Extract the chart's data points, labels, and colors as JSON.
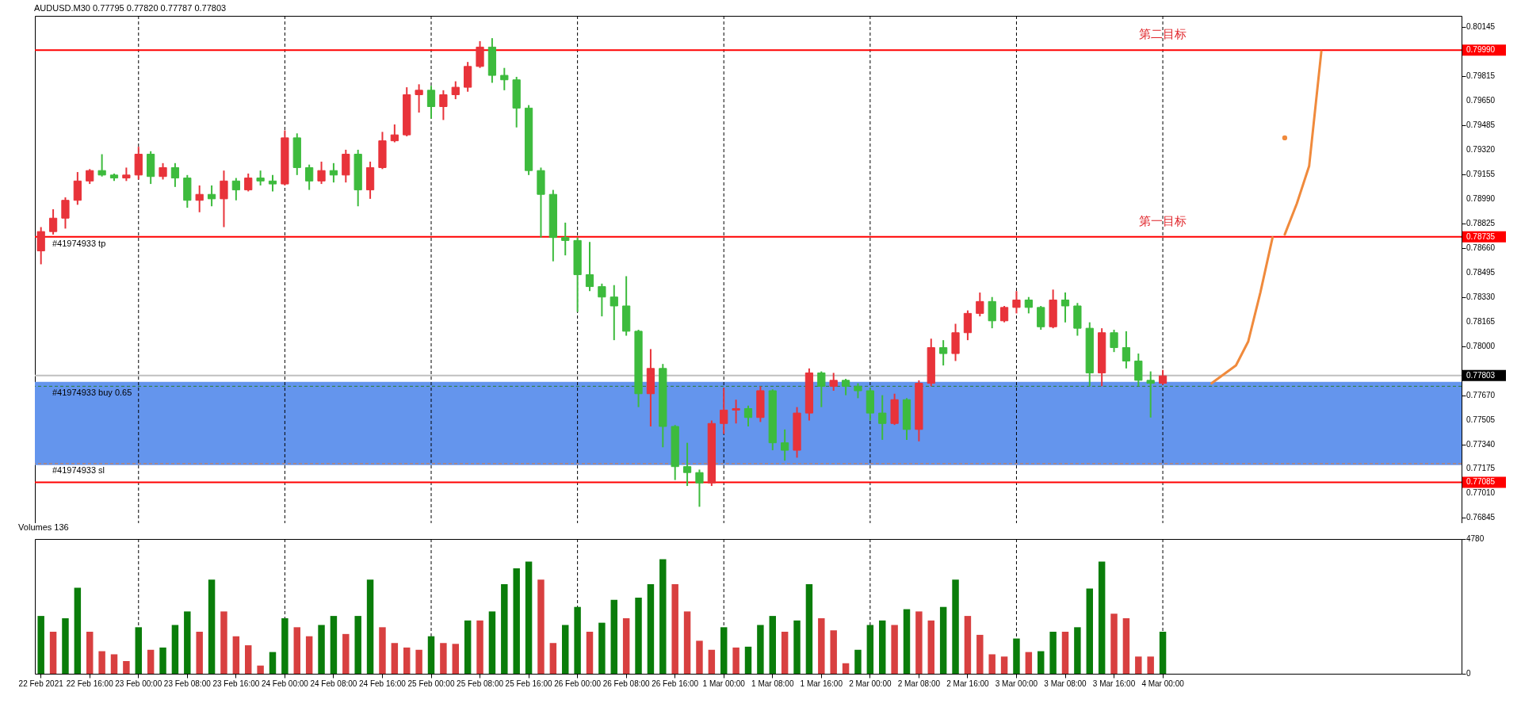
{
  "chart_data": [
    {
      "type": "candlestick",
      "title": "AUDUSD.M30 0.77795 0.77820 0.77787 0.77803",
      "categories": [
        "22 Feb 2021",
        null,
        null,
        null,
        "22 Feb 16:00",
        null,
        null,
        null,
        "23 Feb 00:00",
        null,
        null,
        null,
        "23 Feb 08:00",
        null,
        null,
        null,
        "23 Feb 16:00",
        null,
        null,
        null,
        "24 Feb 00:00",
        null,
        null,
        null,
        "24 Feb 08:00",
        null,
        null,
        null,
        "24 Feb 16:00",
        null,
        null,
        null,
        "25 Feb 00:00",
        null,
        null,
        null,
        "25 Feb 08:00",
        null,
        null,
        null,
        "25 Feb 16:00",
        null,
        null,
        null,
        "26 Feb 00:00",
        null,
        null,
        null,
        "26 Feb 08:00",
        null,
        null,
        null,
        "26 Feb 16:00",
        null,
        null,
        null,
        "1 Mar 00:00",
        null,
        null,
        null,
        "1 Mar 08:00",
        null,
        null,
        null,
        "1 Mar 16:00",
        null,
        null,
        null,
        "2 Mar 00:00",
        null,
        null,
        null,
        "2 Mar 08:00",
        null,
        null,
        null,
        "2 Mar 16:00",
        null,
        null,
        null,
        "3 Mar 00:00",
        null,
        null,
        null,
        "3 Mar 08:00",
        null,
        null,
        null,
        "3 Mar 16:00",
        null,
        null,
        null,
        "4 Mar 00:00",
        null,
        null,
        null,
        null,
        null,
        null,
        null,
        null,
        null,
        null,
        null,
        null,
        null,
        null,
        null,
        null,
        null,
        null,
        null,
        null,
        null,
        null,
        null,
        null
      ],
      "ohlc": [
        [
          0.7864,
          0.788,
          0.7855,
          0.7877
        ],
        [
          0.7877,
          0.7892,
          0.7875,
          0.7886
        ],
        [
          0.7886,
          0.79,
          0.7879,
          0.7898
        ],
        [
          0.7898,
          0.7917,
          0.7895,
          0.7911
        ],
        [
          0.7911,
          0.7919,
          0.7909,
          0.7918
        ],
        [
          0.7918,
          0.7929,
          0.7914,
          0.7915
        ],
        [
          0.7915,
          0.7916,
          0.7911,
          0.7913
        ],
        [
          0.7913,
          0.792,
          0.7911,
          0.7915
        ],
        [
          0.7915,
          0.7934,
          0.7912,
          0.7929
        ],
        [
          0.7929,
          0.7931,
          0.7909,
          0.7914
        ],
        [
          0.7914,
          0.7923,
          0.7912,
          0.792
        ],
        [
          0.792,
          0.7923,
          0.7907,
          0.7913
        ],
        [
          0.7913,
          0.7915,
          0.7893,
          0.7898
        ],
        [
          0.7898,
          0.7908,
          0.789,
          0.7902
        ],
        [
          0.7902,
          0.7908,
          0.7894,
          0.7899
        ],
        [
          0.7899,
          0.7918,
          0.788,
          0.7911
        ],
        [
          0.7911,
          0.7913,
          0.7898,
          0.7905
        ],
        [
          0.7905,
          0.7916,
          0.7904,
          0.7913
        ],
        [
          0.7913,
          0.7918,
          0.7908,
          0.7911
        ],
        [
          0.7911,
          0.7915,
          0.7904,
          0.7909
        ],
        [
          0.7909,
          0.7945,
          0.7908,
          0.794
        ],
        [
          0.794,
          0.7943,
          0.7915,
          0.792
        ],
        [
          0.792,
          0.7922,
          0.7905,
          0.7911
        ],
        [
          0.7911,
          0.7924,
          0.7909,
          0.7918
        ],
        [
          0.7918,
          0.7923,
          0.791,
          0.7915
        ],
        [
          0.7915,
          0.7932,
          0.791,
          0.7929
        ],
        [
          0.7929,
          0.7932,
          0.7894,
          0.7905
        ],
        [
          0.7905,
          0.7924,
          0.7899,
          0.792
        ],
        [
          0.792,
          0.7944,
          0.7919,
          0.7938
        ],
        [
          0.7938,
          0.7949,
          0.7937,
          0.7942
        ],
        [
          0.7942,
          0.7974,
          0.7941,
          0.7969
        ],
        [
          0.7969,
          0.7976,
          0.7957,
          0.7972
        ],
        [
          0.7972,
          0.7975,
          0.7953,
          0.7961
        ],
        [
          0.7961,
          0.7972,
          0.7952,
          0.7969
        ],
        [
          0.7969,
          0.7978,
          0.7966,
          0.7974
        ],
        [
          0.7974,
          0.7991,
          0.7971,
          0.7988
        ],
        [
          0.7988,
          0.8005,
          0.7987,
          0.8001
        ],
        [
          0.8001,
          0.8007,
          0.7977,
          0.7982
        ],
        [
          0.7982,
          0.7987,
          0.7972,
          0.7979
        ],
        [
          0.7979,
          0.7981,
          0.7947,
          0.796
        ],
        [
          0.796,
          0.7962,
          0.7915,
          0.7918
        ],
        [
          0.7918,
          0.792,
          0.7873,
          0.7902
        ],
        [
          0.7902,
          0.7905,
          0.7857,
          0.7873
        ],
        [
          0.7873,
          0.7883,
          0.7861,
          0.7871
        ],
        [
          0.7871,
          0.7873,
          0.7823,
          0.7848
        ],
        [
          0.7848,
          0.787,
          0.7837,
          0.784
        ],
        [
          0.784,
          0.7842,
          0.782,
          0.7833
        ],
        [
          0.7833,
          0.7841,
          0.7804,
          0.7827
        ],
        [
          0.7827,
          0.7847,
          0.7807,
          0.781
        ],
        [
          0.781,
          0.7811,
          0.7759,
          0.7768
        ],
        [
          0.7768,
          0.7798,
          0.7746,
          0.7785
        ],
        [
          0.7785,
          0.7788,
          0.7732,
          0.7746
        ],
        [
          0.7746,
          0.7747,
          0.771,
          0.7719
        ],
        [
          0.7719,
          0.7735,
          0.7706,
          0.7715
        ],
        [
          0.7715,
          0.7717,
          0.7692,
          0.7708
        ],
        [
          0.7708,
          0.775,
          0.7706,
          0.7748
        ],
        [
          0.7748,
          0.7772,
          0.7741,
          0.7757
        ],
        [
          0.7757,
          0.7764,
          0.7748,
          0.7758
        ],
        [
          0.7758,
          0.776,
          0.7746,
          0.7752
        ],
        [
          0.7752,
          0.7773,
          0.7749,
          0.777
        ],
        [
          0.777,
          0.7771,
          0.773,
          0.7735
        ],
        [
          0.7735,
          0.7744,
          0.7723,
          0.773
        ],
        [
          0.773,
          0.7759,
          0.7725,
          0.7755
        ],
        [
          0.7755,
          0.7785,
          0.775,
          0.7782
        ],
        [
          0.7782,
          0.7783,
          0.7759,
          0.7773
        ],
        [
          0.7773,
          0.7782,
          0.777,
          0.7777
        ],
        [
          0.7777,
          0.7778,
          0.7767,
          0.7773
        ],
        [
          0.7773,
          0.7775,
          0.7765,
          0.777
        ],
        [
          0.777,
          0.7772,
          0.775,
          0.7755
        ],
        [
          0.7755,
          0.7767,
          0.7737,
          0.7748
        ],
        [
          0.7748,
          0.7768,
          0.7747,
          0.7764
        ],
        [
          0.7764,
          0.7765,
          0.7737,
          0.7744
        ],
        [
          0.7744,
          0.7777,
          0.7736,
          0.7775
        ],
        [
          0.7775,
          0.7805,
          0.7773,
          0.7799
        ],
        [
          0.7799,
          0.7804,
          0.7787,
          0.7795
        ],
        [
          0.7795,
          0.7815,
          0.779,
          0.7809
        ],
        [
          0.7809,
          0.7824,
          0.7804,
          0.7822
        ],
        [
          0.7822,
          0.7836,
          0.782,
          0.783
        ],
        [
          0.783,
          0.7833,
          0.7812,
          0.7817
        ],
        [
          0.7817,
          0.7827,
          0.7816,
          0.7826
        ],
        [
          0.7826,
          0.7837,
          0.7822,
          0.7831
        ],
        [
          0.7831,
          0.7833,
          0.7822,
          0.7826
        ],
        [
          0.7826,
          0.7827,
          0.7811,
          0.7813
        ],
        [
          0.7813,
          0.7838,
          0.7812,
          0.7831
        ],
        [
          0.7831,
          0.7836,
          0.7816,
          0.7827
        ],
        [
          0.7827,
          0.7829,
          0.7807,
          0.7812
        ],
        [
          0.7812,
          0.7816,
          0.7773,
          0.7782
        ],
        [
          0.7782,
          0.7812,
          0.7773,
          0.7809
        ],
        [
          0.7809,
          0.7811,
          0.7796,
          0.7799
        ],
        [
          0.7799,
          0.781,
          0.7785,
          0.779
        ],
        [
          0.779,
          0.7795,
          0.7773,
          0.7777
        ],
        [
          0.7777,
          0.7783,
          0.7752,
          0.7775
        ],
        [
          0.7775,
          0.7784,
          0.7774,
          0.778
        ],
        null,
        null,
        null,
        null,
        null,
        null,
        null,
        null,
        null,
        null,
        null,
        null,
        null,
        null,
        null,
        null,
        null,
        null,
        null,
        null,
        null,
        null,
        null,
        null
      ],
      "colors": [
        "#e8333a",
        "#e8333a",
        "#e8333a",
        "#e8333a",
        "#e8333a",
        "#3dbb3d",
        "#3dbb3d",
        "#e8333a",
        "#e8333a",
        "#3dbb3d",
        "#e8333a",
        "#3dbb3d",
        "#3dbb3d",
        "#e8333a",
        "#3dbb3d",
        "#e8333a",
        "#3dbb3d",
        "#e8333a",
        "#3dbb3d",
        "#3dbb3d",
        "#e8333a",
        "#3dbb3d",
        "#3dbb3d",
        "#e8333a",
        "#3dbb3d",
        "#e8333a",
        "#3dbb3d",
        "#e8333a",
        "#e8333a",
        "#e8333a",
        "#e8333a",
        "#e8333a",
        "#3dbb3d",
        "#e8333a",
        "#e8333a",
        "#e8333a",
        "#e8333a",
        "#3dbb3d",
        "#3dbb3d",
        "#3dbb3d",
        "#3dbb3d",
        "#3dbb3d",
        "#3dbb3d",
        "#3dbb3d",
        "#3dbb3d",
        "#3dbb3d",
        "#3dbb3d",
        "#3dbb3d",
        "#3dbb3d",
        "#3dbb3d",
        "#e8333a",
        "#3dbb3d",
        "#3dbb3d",
        "#3dbb3d",
        "#3dbb3d",
        "#e8333a",
        "#e8333a",
        "#e8333a",
        "#3dbb3d",
        "#e8333a",
        "#3dbb3d",
        "#3dbb3d",
        "#e8333a",
        "#e8333a",
        "#3dbb3d",
        "#e8333a",
        "#3dbb3d",
        "#3dbb3d",
        "#3dbb3d",
        "#3dbb3d",
        "#e8333a",
        "#3dbb3d",
        "#e8333a",
        "#e8333a",
        "#3dbb3d",
        "#e8333a",
        "#e8333a",
        "#e8333a",
        "#3dbb3d",
        "#e8333a",
        "#e8333a",
        "#3dbb3d",
        "#3dbb3d",
        "#e8333a",
        "#3dbb3d",
        "#3dbb3d",
        "#3dbb3d",
        "#e8333a",
        "#3dbb3d",
        "#3dbb3d",
        "#3dbb3d",
        "#3dbb3d",
        "#e8333a",
        null,
        null,
        null,
        null,
        null,
        null,
        null,
        null,
        null,
        null,
        null,
        null,
        null,
        null,
        null,
        null,
        null,
        null,
        null,
        null,
        null,
        null,
        null,
        null
      ],
      "series": [
        {
          "type": "line",
          "color": "#f08a3c",
          "values": [
            null,
            null,
            null,
            null,
            null,
            null,
            null,
            null,
            null,
            null,
            null,
            null,
            null,
            null,
            null,
            null,
            null,
            null,
            null,
            null,
            null,
            null,
            null,
            null,
            null,
            null,
            null,
            null,
            null,
            null,
            null,
            null,
            null,
            null,
            null,
            null,
            null,
            null,
            null,
            null,
            null,
            null,
            null,
            null,
            null,
            null,
            null,
            null,
            null,
            null,
            null,
            null,
            null,
            null,
            null,
            null,
            null,
            null,
            null,
            null,
            null,
            null,
            null,
            null,
            null,
            null,
            null,
            null,
            null,
            null,
            null,
            null,
            null,
            null,
            null,
            null,
            null,
            null,
            null,
            null,
            null,
            null,
            null,
            null,
            null,
            null,
            null,
            null,
            null,
            null,
            null,
            null,
            null,
            null,
            null,
            null,
            0.7775,
            0.7781,
            0.7787,
            0.7803,
            0.7836,
            0.7873,
            null,
            null,
            null,
            null,
            null,
            null,
            null,
            null,
            null,
            null,
            null,
            null,
            null,
            null,
            null
          ]
        },
        {
          "type": "line",
          "color": "#f08a3c",
          "values": [
            null,
            null,
            null,
            null,
            null,
            null,
            null,
            null,
            null,
            null,
            null,
            null,
            null,
            null,
            null,
            null,
            null,
            null,
            null,
            null,
            null,
            null,
            null,
            null,
            null,
            null,
            null,
            null,
            null,
            null,
            null,
            null,
            null,
            null,
            null,
            null,
            null,
            null,
            null,
            null,
            null,
            null,
            null,
            null,
            null,
            null,
            null,
            null,
            null,
            null,
            null,
            null,
            null,
            null,
            null,
            null,
            null,
            null,
            null,
            null,
            null,
            null,
            null,
            null,
            null,
            null,
            null,
            null,
            null,
            null,
            null,
            null,
            null,
            null,
            null,
            null,
            null,
            null,
            null,
            null,
            null,
            null,
            null,
            null,
            null,
            null,
            null,
            null,
            null,
            null,
            null,
            null,
            null,
            null,
            null,
            null,
            null,
            null,
            null,
            null,
            null,
            null,
            0.7875,
            0.7896,
            0.7921,
            0.7998,
            null,
            null,
            null,
            null,
            null,
            null,
            null,
            null,
            null,
            null,
            null
          ]
        },
        {
          "type": "scatter",
          "color": "#f08a3c",
          "values": [
            null,
            null,
            null,
            null,
            null,
            null,
            null,
            null,
            null,
            null,
            null,
            null,
            null,
            null,
            null,
            null,
            null,
            null,
            null,
            null,
            null,
            null,
            null,
            null,
            null,
            null,
            null,
            null,
            null,
            null,
            null,
            null,
            null,
            null,
            null,
            null,
            null,
            null,
            null,
            null,
            null,
            null,
            null,
            null,
            null,
            null,
            null,
            null,
            null,
            null,
            null,
            null,
            null,
            null,
            null,
            null,
            null,
            null,
            null,
            null,
            null,
            null,
            null,
            null,
            null,
            null,
            null,
            null,
            null,
            null,
            null,
            null,
            null,
            null,
            null,
            null,
            null,
            null,
            null,
            null,
            null,
            null,
            null,
            null,
            null,
            null,
            null,
            null,
            null,
            null,
            null,
            null,
            null,
            null,
            null,
            null,
            null,
            null,
            null,
            null,
            null,
            null,
            0.794,
            null,
            null,
            null,
            null,
            null,
            null,
            null,
            null,
            null,
            null,
            null,
            null,
            null,
            null
          ]
        }
      ],
      "ylim": [
        0.7681,
        0.8022
      ],
      "yticks": [
        0.80145,
        {
          "value": 0.7999,
          "label": "0.79990"
        },
        0.79815,
        {
          "value": 0.7965,
          "label": "0.79650"
        },
        0.79485,
        {
          "value": 0.7932,
          "label": "0.79320"
        },
        0.79155,
        {
          "value": 0.7899,
          "label": "0.78990"
        },
        0.78825,
        {
          "value": 0.78735,
          "label": "0.78735"
        },
        {
          "value": 0.7866,
          "label": "0.78660"
        },
        0.78495,
        {
          "value": 0.7833,
          "label": "0.78330"
        },
        0.78165,
        {
          "value": 0.78,
          "label": "0.78000"
        },
        {
          "value": 0.77803,
          "label": "0.77803"
        },
        {
          "value": 0.7767,
          "label": "0.77670"
        },
        0.77505,
        {
          "value": 0.7734,
          "label": "0.77340"
        },
        0.77175,
        {
          "value": 0.77085,
          "label": "0.77085"
        },
        {
          "value": 0.7701,
          "label": "0.77010"
        },
        0.76845
      ],
      "tick_labels": "y",
      "bands": [
        {
          "axis": "y",
          "from": 0.772,
          "to": 0.7776,
          "color": "#6495ed"
        }
      ],
      "ref_lines": [
        {
          "axis": "x",
          "value": "23 Feb 00:00",
          "color": "#000000",
          "line_style": "dashed"
        },
        {
          "axis": "x",
          "value": "24 Feb 00:00",
          "color": "#000000",
          "line_style": "dashed"
        },
        {
          "axis": "x",
          "value": "25 Feb 00:00",
          "color": "#000000",
          "line_style": "dashed"
        },
        {
          "axis": "x",
          "value": "26 Feb 00:00",
          "color": "#000000",
          "line_style": "dashed"
        },
        {
          "axis": "x",
          "value": "1 Mar 00:00",
          "color": "#000000",
          "line_style": "dashed"
        },
        {
          "axis": "x",
          "value": "2 Mar 00:00",
          "color": "#000000",
          "line_style": "dashed"
        },
        {
          "axis": "x",
          "value": "3 Mar 00:00",
          "color": "#000000",
          "line_style": "dashed"
        },
        {
          "axis": "x",
          "value": "4 Mar 00:00",
          "color": "#000000",
          "line_style": "dashed"
        },
        {
          "axis": "y",
          "value": 0.7999,
          "color": "#ff0000"
        },
        {
          "axis": "y",
          "value": 0.78735,
          "label": "#41974933 tp",
          "color": "#ff0000"
        },
        {
          "axis": "y",
          "value": 0.77085,
          "color": "#ff0000"
        },
        {
          "axis": "y",
          "value": 0.77803,
          "color": "#c0c0c0"
        },
        {
          "axis": "y",
          "value": 0.7773,
          "label": "#41974933 buy 0.65",
          "color": "#2e7d32",
          "line_style": "dashed"
        },
        {
          "axis": "y",
          "value": 0.7721,
          "label": "#41974933 sl",
          "color": "#e07b39",
          "line_style": "dashed"
        }
      ],
      "annotations": [
        {
          "text": "第二目标",
          "x": "4 Mar 00:00",
          "y": 0.7999
        },
        {
          "text": "第一目标",
          "x": "4 Mar 00:00",
          "y": 0.78735
        }
      ]
    },
    {
      "type": "bar",
      "title": "Volumes 136",
      "categories": [
        "22 Feb 2021",
        null,
        null,
        null,
        "22 Feb 16:00",
        null,
        null,
        null,
        "23 Feb 00:00",
        null,
        null,
        null,
        "23 Feb 08:00",
        null,
        null,
        null,
        "23 Feb 16:00",
        null,
        null,
        null,
        "24 Feb 00:00",
        null,
        null,
        null,
        "24 Feb 08:00",
        null,
        null,
        null,
        "24 Feb 16:00",
        null,
        null,
        null,
        "25 Feb 00:00",
        null,
        null,
        null,
        "25 Feb 08:00",
        null,
        null,
        null,
        "25 Feb 16:00",
        null,
        null,
        null,
        "26 Feb 00:00",
        null,
        null,
        null,
        "26 Feb 08:00",
        null,
        null,
        null,
        "26 Feb 16:00",
        null,
        null,
        null,
        "1 Mar 00:00",
        null,
        null,
        null,
        "1 Mar 08:00",
        null,
        null,
        null,
        "1 Mar 16:00",
        null,
        null,
        null,
        "2 Mar 00:00",
        null,
        null,
        null,
        "2 Mar 08:00",
        null,
        null,
        null,
        "2 Mar 16:00",
        null,
        null,
        null,
        "3 Mar 00:00",
        null,
        null,
        null,
        "3 Mar 08:00",
        null,
        null,
        null,
        "3 Mar 16:00",
        null,
        null,
        null,
        "4 Mar 00:00",
        null,
        null,
        null,
        null,
        null,
        null,
        null,
        null,
        null,
        null,
        null,
        null,
        null,
        null,
        null,
        null,
        null,
        null,
        null,
        null,
        null,
        null,
        null,
        null
      ],
      "values": [
        2050,
        1490,
        1970,
        3050,
        1490,
        800,
        690,
        450,
        1650,
        850,
        930,
        1730,
        2210,
        1490,
        3340,
        2210,
        1330,
        1010,
        290,
        770,
        1970,
        1650,
        1330,
        1730,
        2050,
        1410,
        2050,
        3340,
        1650,
        1090,
        930,
        850,
        1330,
        1090,
        1060,
        1890,
        1890,
        2210,
        3180,
        3740,
        3980,
        3340,
        1090,
        1730,
        2370,
        1490,
        1810,
        2620,
        1970,
        2700,
        3180,
        4060,
        3180,
        2210,
        1170,
        850,
        1650,
        930,
        960,
        1730,
        2050,
        1490,
        1890,
        3180,
        1970,
        1540,
        370,
        850,
        1730,
        1890,
        1730,
        2290,
        2210,
        1890,
        2370,
        3340,
        2050,
        1380,
        690,
        610,
        1250,
        770,
        800,
        1490,
        1490,
        1650,
        3020,
        3980,
        2130,
        1970,
        610,
        610,
        1490,
        null,
        null,
        null,
        null,
        null,
        null,
        null,
        null,
        null,
        null,
        null,
        null,
        null,
        null,
        null,
        null,
        null,
        null,
        null,
        null,
        null,
        null,
        null,
        null
      ],
      "colors": [
        "#0a7d0a",
        "#d84040",
        "#0a7d0a",
        "#0a7d0a",
        "#d84040",
        "#d84040",
        "#d84040",
        "#d84040",
        "#0a7d0a",
        "#d84040",
        "#0a7d0a",
        "#0a7d0a",
        "#0a7d0a",
        "#d84040",
        "#0a7d0a",
        "#d84040",
        "#d84040",
        "#d84040",
        "#d84040",
        "#0a7d0a",
        "#0a7d0a",
        "#d84040",
        "#d84040",
        "#0a7d0a",
        "#0a7d0a",
        "#d84040",
        "#0a7d0a",
        "#0a7d0a",
        "#d84040",
        "#d84040",
        "#d84040",
        "#d84040",
        "#0a7d0a",
        "#d84040",
        "#d84040",
        "#0a7d0a",
        "#d84040",
        "#0a7d0a",
        "#0a7d0a",
        "#0a7d0a",
        "#0a7d0a",
        "#d84040",
        "#d84040",
        "#0a7d0a",
        "#0a7d0a",
        "#d84040",
        "#0a7d0a",
        "#0a7d0a",
        "#d84040",
        "#0a7d0a",
        "#0a7d0a",
        "#0a7d0a",
        "#d84040",
        "#d84040",
        "#d84040",
        "#d84040",
        "#0a7d0a",
        "#d84040",
        "#0a7d0a",
        "#0a7d0a",
        "#0a7d0a",
        "#d84040",
        "#0a7d0a",
        "#0a7d0a",
        "#d84040",
        "#d84040",
        "#d84040",
        "#0a7d0a",
        "#0a7d0a",
        "#0a7d0a",
        "#d84040",
        "#0a7d0a",
        "#d84040",
        "#d84040",
        "#0a7d0a",
        "#0a7d0a",
        "#d84040",
        "#d84040",
        "#d84040",
        "#d84040",
        "#0a7d0a",
        "#d84040",
        "#0a7d0a",
        "#0a7d0a",
        "#d84040",
        "#0a7d0a",
        "#0a7d0a",
        "#0a7d0a",
        "#d84040",
        "#d84040",
        "#d84040",
        "#d84040",
        "#0a7d0a",
        null,
        null,
        null,
        null,
        null,
        null,
        null,
        null,
        null,
        null,
        null,
        null,
        null,
        null,
        null,
        null,
        null,
        null,
        null,
        null,
        null,
        null,
        null,
        null
      ],
      "ylim": [
        0,
        4780
      ],
      "yticks": [
        0,
        4780
      ],
      "ref_lines": [
        {
          "axis": "x",
          "value": "23 Feb 00:00",
          "color": "#000000",
          "line_style": "dashed"
        },
        {
          "axis": "x",
          "value": "24 Feb 00:00",
          "color": "#000000",
          "line_style": "dashed"
        },
        {
          "axis": "x",
          "value": "25 Feb 00:00",
          "color": "#000000",
          "line_style": "dashed"
        },
        {
          "axis": "x",
          "value": "26 Feb 00:00",
          "color": "#000000",
          "line_style": "dashed"
        },
        {
          "axis": "x",
          "value": "1 Mar 00:00",
          "color": "#000000",
          "line_style": "dashed"
        },
        {
          "axis": "x",
          "value": "2 Mar 00:00",
          "color": "#000000",
          "line_style": "dashed"
        },
        {
          "axis": "x",
          "value": "3 Mar 00:00",
          "color": "#000000",
          "line_style": "dashed"
        },
        {
          "axis": "x",
          "value": "4 Mar 00:00",
          "color": "#000000",
          "line_style": "dashed"
        }
      ]
    }
  ]
}
